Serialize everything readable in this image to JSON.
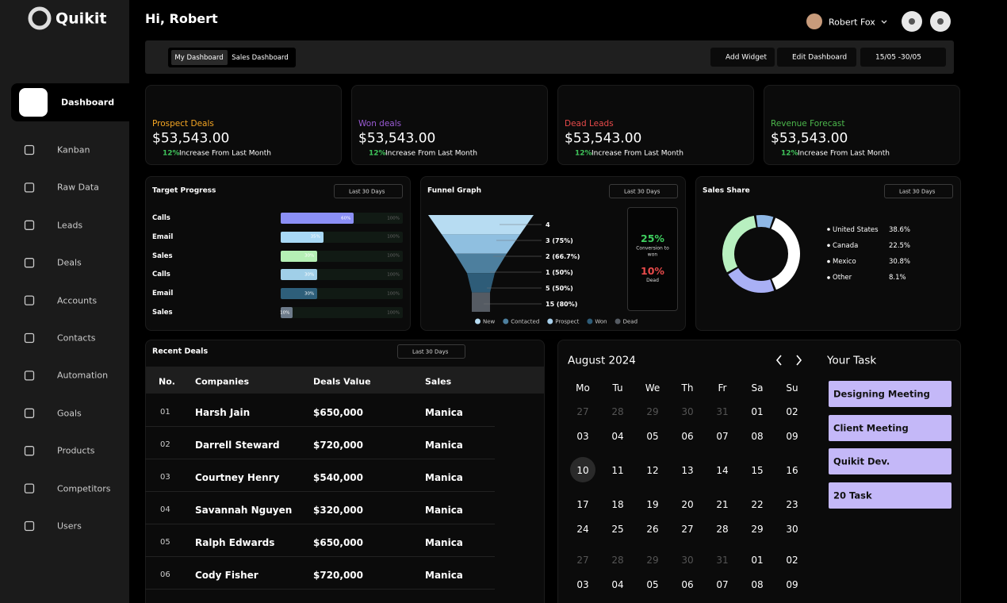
{
  "sidebar": {
    "logo": "Quikit",
    "nav": [
      "Dashboard",
      "Kanban",
      "Raw Data",
      "Leads",
      "Deals",
      "Accounts",
      "Contacts",
      "Automation",
      "Goals",
      "Products",
      "Competitors",
      "Users"
    ]
  },
  "header": {
    "greeting": "Hi, Robert",
    "user": "Robert Fox"
  },
  "toolbar": {
    "tabs": [
      "My Dashboard",
      "Sales Dashboard"
    ],
    "add_widget": "Add Widget",
    "edit_dashboard": "Edit Dashboard",
    "date_range": "15/05 -30/05"
  },
  "stats": [
    {
      "label": "Prospect Deals",
      "value": "$53,543.00",
      "change": "12%",
      "change_text": "Increase From Last Month",
      "color": "#f5a623"
    },
    {
      "label": "Won deals",
      "value": "$53,543.00",
      "change": "12%",
      "change_text": "Increase From Last Month",
      "color": "#9b5bd6"
    },
    {
      "label": "Dead Leads",
      "value": "$53,543.00",
      "change": "12%",
      "change_text": "Increase From Last Month",
      "color": "#e84a4a"
    },
    {
      "label": "Revenue Forecast",
      "value": "$53,543.00",
      "change": "12%",
      "change_text": "Increase From Last Month",
      "color": "#4cb84c"
    }
  ],
  "target_progress": {
    "title": "Target Progress",
    "filter": "Last 30 Days",
    "max_label": "100%",
    "rows": [
      {
        "label": "Calls",
        "value": 60,
        "value_label": "60%",
        "color": "#8b8ff5"
      },
      {
        "label": "Email",
        "value": 35,
        "value_label": "35%",
        "color": "#a8d8f5"
      },
      {
        "label": "Sales",
        "value": 30,
        "value_label": "30%",
        "color": "#b5f0b5"
      },
      {
        "label": "Calls",
        "value": 30,
        "value_label": "30%",
        "color": "#a0cfe8"
      },
      {
        "label": "Email",
        "value": 30,
        "value_label": "30%",
        "color": "#2e5f7a"
      },
      {
        "label": "Sales",
        "value": 10,
        "value_label": "10%",
        "color": "#6d7b8a"
      }
    ]
  },
  "funnel": {
    "title": "Funnel Graph",
    "filter": "Last 30 Days",
    "stages": [
      "4",
      "3 (75%)",
      "2 (66.7%)",
      "1 (50%)",
      "5 (50%)",
      "15 (80%)"
    ],
    "legend": [
      {
        "name": "New",
        "color": "#b7dcf2"
      },
      {
        "name": "Contacted",
        "color": "#4d7f9e"
      },
      {
        "name": "Prospect",
        "color": "#a8d0ec"
      },
      {
        "name": "Won",
        "color": "#2e5c78"
      },
      {
        "name": "Dead",
        "color": "#555b63"
      }
    ],
    "conversion": {
      "value": "25%",
      "label": "Conversion to won"
    },
    "dead": {
      "value": "10%",
      "label": "Dead"
    }
  },
  "sales_share": {
    "title": "Sales Share",
    "filter": "Last 30 Days",
    "series": [
      {
        "name": "United States",
        "value": 38.6,
        "value_label": "38.6%",
        "color": "#ffffff"
      },
      {
        "name": "Canada",
        "value": 22.5,
        "value_label": "22.5%",
        "color": "#a9b0f5"
      },
      {
        "name": "Mexico",
        "value": 30.8,
        "value_label": "30.8%",
        "color": "#b8f0c0"
      },
      {
        "name": "Other",
        "value": 8.1,
        "value_label": "8.1%",
        "color": "#8fb8e6"
      }
    ]
  },
  "recent_deals": {
    "title": "Recent Deals",
    "filter": "Last 30 Days",
    "columns": [
      "No.",
      "Companies",
      "Deals Value",
      "Sales"
    ],
    "rows": [
      [
        "01",
        "Harsh Jain",
        "$650,000",
        "Manica"
      ],
      [
        "02",
        "Darrell Steward",
        "$720,000",
        "Manica"
      ],
      [
        "03",
        "Courtney Henry",
        "$540,000",
        "Manica"
      ],
      [
        "04",
        "Savannah Nguyen",
        "$320,000",
        "Manica"
      ],
      [
        "05",
        "Ralph Edwards",
        "$650,000",
        "Manica"
      ],
      [
        "06",
        "Cody Fisher",
        "$720,000",
        "Manica"
      ]
    ]
  },
  "calendar": {
    "month": "August 2024",
    "weekdays": [
      "Mo",
      "Tu",
      "We",
      "Th",
      "Fr",
      "Sa",
      "Su"
    ],
    "weeks": [
      [
        "27",
        "28",
        "29",
        "30",
        "31",
        "01",
        "02"
      ],
      [
        "03",
        "04",
        "05",
        "06",
        "07",
        "08",
        "09"
      ],
      [
        "10",
        "11",
        "12",
        "13",
        "14",
        "15",
        "16"
      ],
      [
        "17",
        "18",
        "19",
        "20",
        "21",
        "22",
        "23"
      ],
      [
        "24",
        "25",
        "26",
        "27",
        "28",
        "29",
        "30"
      ],
      [
        "27",
        "28",
        "29",
        "30",
        "31",
        "01",
        "02"
      ],
      [
        "03",
        "04",
        "05",
        "06",
        "07",
        "08",
        "09"
      ]
    ]
  },
  "tasks": {
    "title": "Your Task",
    "items": [
      "Designing Meeting",
      "Client Meeting",
      "Quikit Dev.",
      "20 Task"
    ]
  }
}
